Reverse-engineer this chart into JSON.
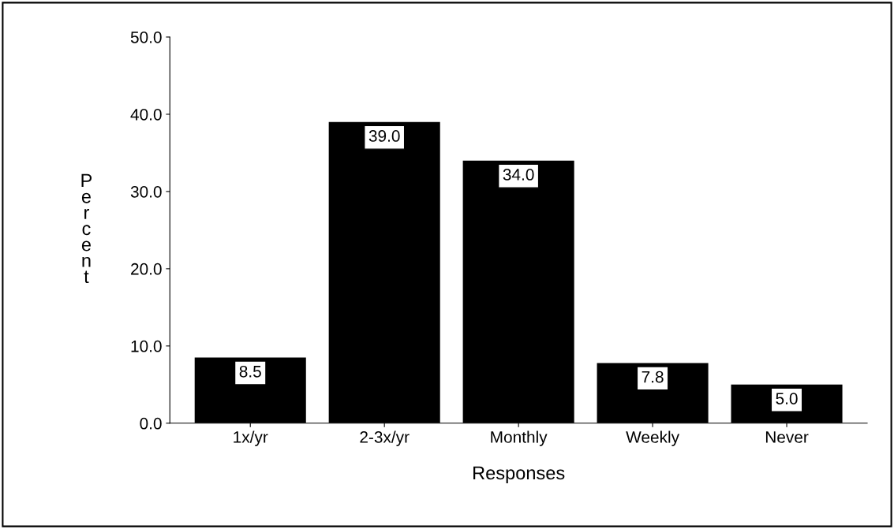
{
  "chart_data": {
    "type": "bar",
    "xlabel": "Responses",
    "ylabel": "Percent",
    "categories": [
      "1x/yr",
      "2-3x/yr",
      "Monthly",
      "Weekly",
      "Never"
    ],
    "values": [
      8.5,
      39.0,
      34.0,
      7.8,
      5.0
    ],
    "color": "#000000",
    "value_labels": [
      "8.5",
      "39.0",
      "34.0",
      "7.8",
      "5.0"
    ],
    "ylim": [
      0,
      50
    ],
    "yticks": [
      {
        "value": 0,
        "label": "0.0"
      },
      {
        "value": 10,
        "label": "10.0"
      },
      {
        "value": 20,
        "label": "20.0"
      },
      {
        "value": 30,
        "label": "30.0"
      },
      {
        "value": 40,
        "label": "40.0"
      },
      {
        "value": 50,
        "label": "50.0"
      }
    ],
    "grid": false
  }
}
